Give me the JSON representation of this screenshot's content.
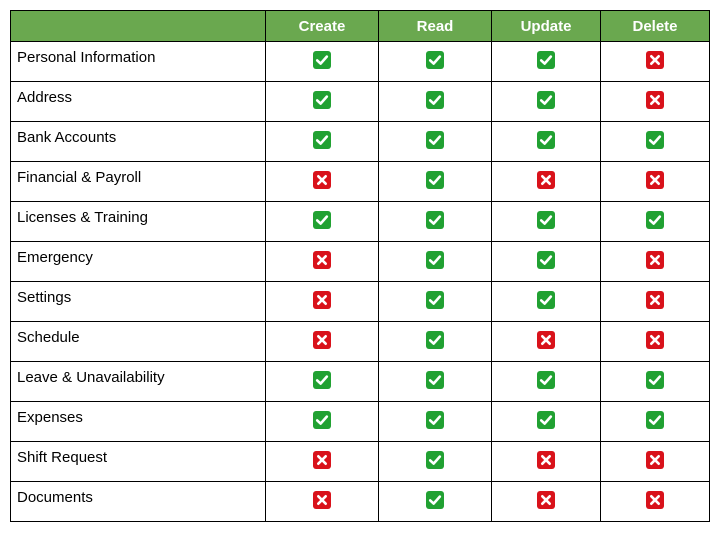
{
  "table": {
    "headers": [
      "",
      "Create",
      "Read",
      "Update",
      "Delete"
    ],
    "rows": [
      {
        "label": "Personal Information",
        "create": true,
        "read": true,
        "update": true,
        "delete": false
      },
      {
        "label": "Address",
        "create": true,
        "read": true,
        "update": true,
        "delete": false
      },
      {
        "label": "Bank Accounts",
        "create": true,
        "read": true,
        "update": true,
        "delete": true
      },
      {
        "label": "Financial & Payroll",
        "create": false,
        "read": true,
        "update": false,
        "delete": false
      },
      {
        "label": "Licenses & Training",
        "create": true,
        "read": true,
        "update": true,
        "delete": true
      },
      {
        "label": "Emergency",
        "create": false,
        "read": true,
        "update": true,
        "delete": false
      },
      {
        "label": "Settings",
        "create": false,
        "read": true,
        "update": true,
        "delete": false
      },
      {
        "label": "Schedule",
        "create": false,
        "read": true,
        "update": false,
        "delete": false
      },
      {
        "label": "Leave & Unavailability",
        "create": true,
        "read": true,
        "update": true,
        "delete": true
      },
      {
        "label": "Expenses",
        "create": true,
        "read": true,
        "update": true,
        "delete": true
      },
      {
        "label": "Shift Request",
        "create": false,
        "read": true,
        "update": false,
        "delete": false
      },
      {
        "label": "Documents",
        "create": false,
        "read": true,
        "update": false,
        "delete": false
      }
    ]
  },
  "icons": {
    "allowed": "check-icon",
    "denied": "cross-icon"
  },
  "colors": {
    "header_bg": "#6aa84f",
    "header_text": "#ffffff",
    "allowed": "#21a132",
    "denied": "#d9121b",
    "border": "#000000"
  }
}
